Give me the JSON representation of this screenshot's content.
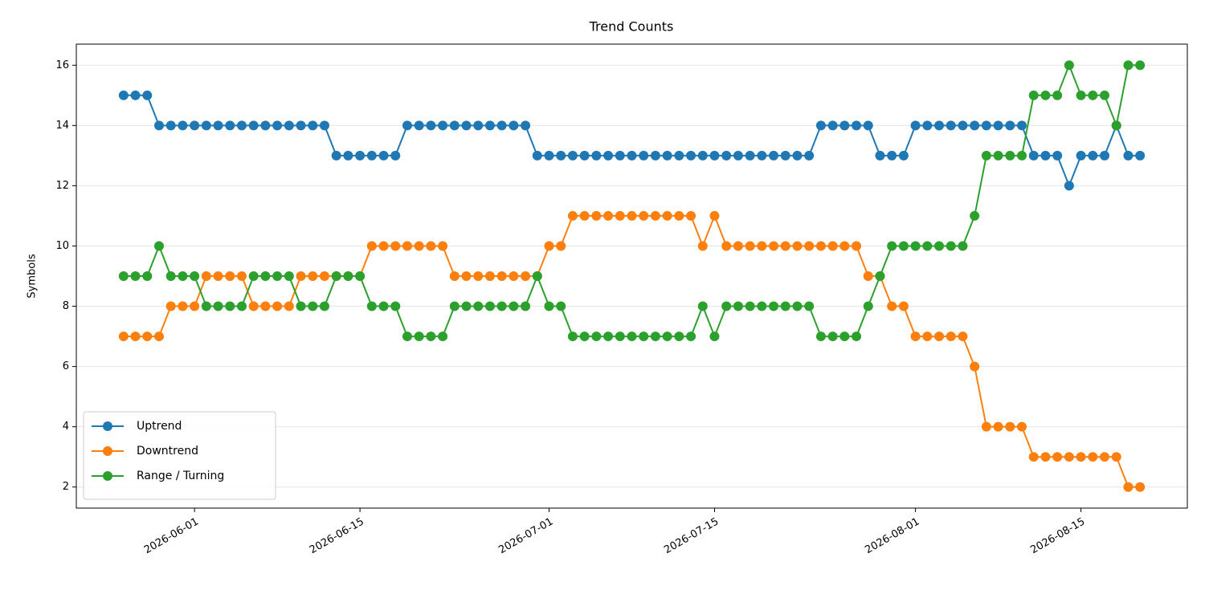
{
  "chart_data": {
    "type": "line",
    "title": "Trend Counts",
    "y_label": "Symbols",
    "x": [
      "2026-05-26",
      "2026-05-27",
      "2026-05-28",
      "2026-05-29",
      "2026-05-30",
      "2026-05-31",
      "2026-06-01",
      "2026-06-02",
      "2026-06-03",
      "2026-06-04",
      "2026-06-05",
      "2026-06-06",
      "2026-06-07",
      "2026-06-08",
      "2026-06-09",
      "2026-06-10",
      "2026-06-11",
      "2026-06-12",
      "2026-06-13",
      "2026-06-14",
      "2026-06-15",
      "2026-06-16",
      "2026-06-17",
      "2026-06-18",
      "2026-06-19",
      "2026-06-20",
      "2026-06-21",
      "2026-06-22",
      "2026-06-23",
      "2026-06-24",
      "2026-06-25",
      "2026-06-26",
      "2026-06-27",
      "2026-06-28",
      "2026-06-29",
      "2026-06-30",
      "2026-07-01",
      "2026-07-02",
      "2026-07-03",
      "2026-07-04",
      "2026-07-05",
      "2026-07-06",
      "2026-07-07",
      "2026-07-08",
      "2026-07-09",
      "2026-07-10",
      "2026-07-11",
      "2026-07-12",
      "2026-07-13",
      "2026-07-14",
      "2026-07-15",
      "2026-07-16",
      "2026-07-17",
      "2026-07-18",
      "2026-07-19",
      "2026-07-20",
      "2026-07-21",
      "2026-07-22",
      "2026-07-23",
      "2026-07-24",
      "2026-07-25",
      "2026-07-26",
      "2026-07-27",
      "2026-07-28",
      "2026-07-29",
      "2026-07-30",
      "2026-07-31",
      "2026-08-01",
      "2026-08-02",
      "2026-08-03",
      "2026-08-04",
      "2026-08-05",
      "2026-08-06",
      "2026-08-07",
      "2026-08-08",
      "2026-08-09",
      "2026-08-10",
      "2026-08-11",
      "2026-08-12",
      "2026-08-13",
      "2026-08-14",
      "2026-08-15",
      "2026-08-16",
      "2026-08-17",
      "2026-08-18",
      "2026-08-19",
      "2026-08-20"
    ],
    "series": [
      {
        "name": "Uptrend",
        "color": "#1f77b4",
        "values": [
          15,
          15,
          15,
          14,
          14,
          14,
          14,
          14,
          14,
          14,
          14,
          14,
          14,
          14,
          14,
          14,
          14,
          14,
          13,
          13,
          13,
          13,
          13,
          13,
          14,
          14,
          14,
          14,
          14,
          14,
          14,
          14,
          14,
          14,
          14,
          13,
          13,
          13,
          13,
          13,
          13,
          13,
          13,
          13,
          13,
          13,
          13,
          13,
          13,
          13,
          13,
          13,
          13,
          13,
          13,
          13,
          13,
          13,
          13,
          14,
          14,
          14,
          14,
          14,
          13,
          13,
          13,
          14,
          14,
          14,
          14,
          14,
          14,
          14,
          14,
          14,
          14,
          13,
          13,
          13,
          12,
          13,
          13,
          13,
          14,
          13,
          13
        ]
      },
      {
        "name": "Downtrend",
        "color": "#ff7f0e",
        "values": [
          7,
          7,
          7,
          7,
          8,
          8,
          8,
          9,
          9,
          9,
          9,
          8,
          8,
          8,
          8,
          9,
          9,
          9,
          9,
          9,
          9,
          10,
          10,
          10,
          10,
          10,
          10,
          10,
          9,
          9,
          9,
          9,
          9,
          9,
          9,
          9,
          10,
          10,
          11,
          11,
          11,
          11,
          11,
          11,
          11,
          11,
          11,
          11,
          11,
          10,
          11,
          10,
          10,
          10,
          10,
          10,
          10,
          10,
          10,
          10,
          10,
          10,
          10,
          9,
          9,
          8,
          8,
          7,
          7,
          7,
          7,
          7,
          6,
          4,
          4,
          4,
          4,
          3,
          3,
          3,
          3,
          3,
          3,
          3,
          3,
          2,
          2
        ]
      },
      {
        "name": "Range / Turning",
        "color": "#2ca02c",
        "values": [
          9,
          9,
          9,
          10,
          9,
          9,
          9,
          8,
          8,
          8,
          8,
          9,
          9,
          9,
          9,
          8,
          8,
          8,
          9,
          9,
          9,
          8,
          8,
          8,
          7,
          7,
          7,
          7,
          8,
          8,
          8,
          8,
          8,
          8,
          8,
          9,
          8,
          8,
          7,
          7,
          7,
          7,
          7,
          7,
          7,
          7,
          7,
          7,
          7,
          8,
          7,
          8,
          8,
          8,
          8,
          8,
          8,
          8,
          8,
          7,
          7,
          7,
          7,
          8,
          9,
          10,
          10,
          10,
          10,
          10,
          10,
          10,
          11,
          13,
          13,
          13,
          13,
          15,
          15,
          15,
          16,
          15,
          15,
          15,
          14,
          16,
          16
        ]
      }
    ],
    "xlim": [
      "2026-05-22",
      "2026-08-24"
    ],
    "xticks": [
      "2026-06-01",
      "2026-06-15",
      "2026-07-01",
      "2026-07-15",
      "2026-08-01",
      "2026-08-15"
    ],
    "ylim": [
      1.3,
      16.7
    ],
    "yticks": [
      2,
      4,
      6,
      8,
      10,
      12,
      14,
      16
    ],
    "grid": "y",
    "legend": "lower left"
  }
}
